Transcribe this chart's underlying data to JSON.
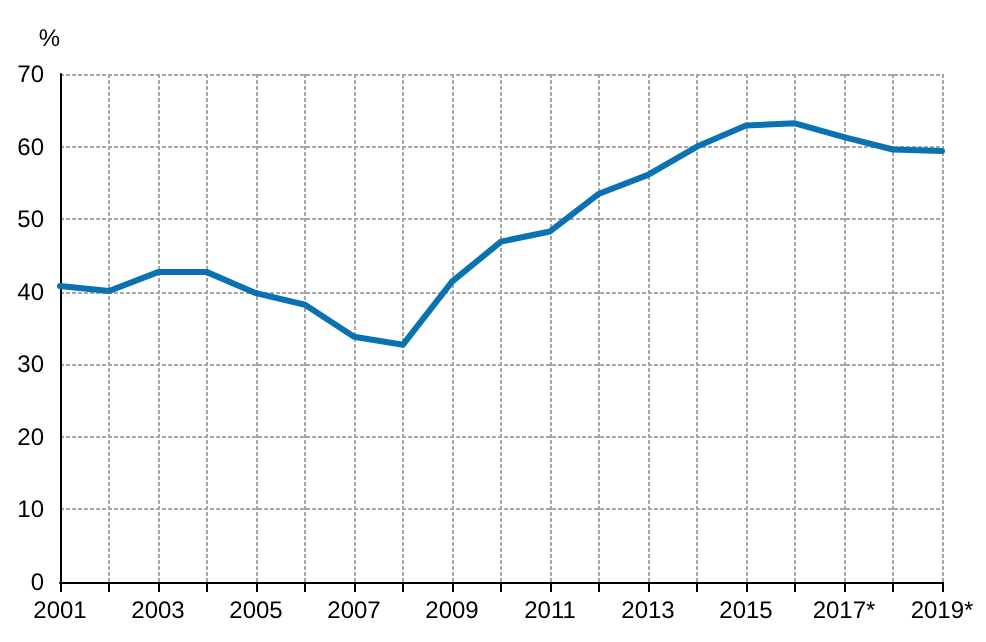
{
  "chart_data": {
    "type": "line",
    "ylabel": "%",
    "categories": [
      "2001",
      null,
      "2003",
      null,
      "2005",
      null,
      "2007",
      null,
      "2009",
      null,
      "2011",
      null,
      "2013",
      null,
      "2015",
      null,
      "2017*",
      null,
      "2019*"
    ],
    "series": [
      {
        "color": "#0a72b0",
        "values": [
          40.8,
          40.1,
          42.7,
          42.7,
          39.8,
          38.2,
          33.8,
          32.7,
          41.4,
          46.9,
          48.3,
          53.5,
          56.1,
          60.0,
          62.9,
          63.2,
          61.3,
          59.6,
          59.4
        ]
      }
    ],
    "ylim": [
      0,
      70
    ],
    "yticks": [
      0,
      10,
      20,
      30,
      40,
      50,
      60,
      70
    ],
    "grid": true,
    "marker": "none",
    "line_style": "solid"
  }
}
